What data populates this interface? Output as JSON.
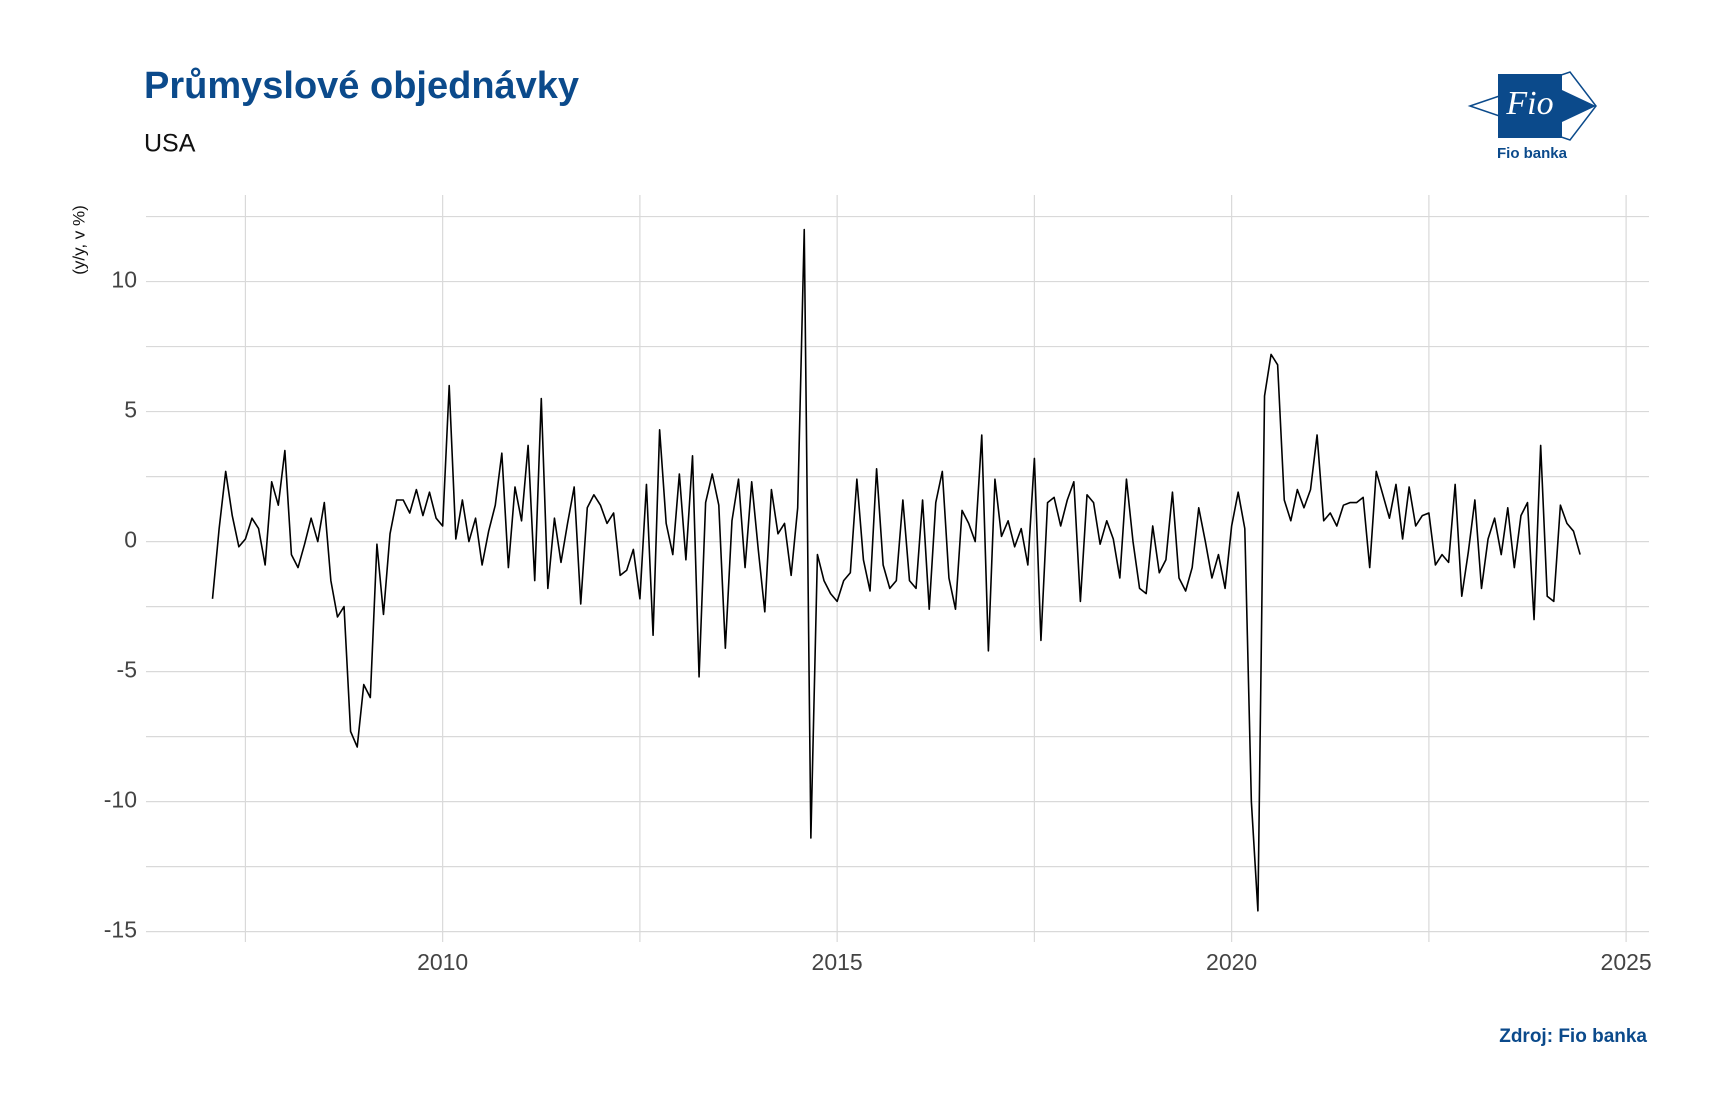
{
  "chart_data": {
    "type": "line",
    "title": "Průmyslové objednávky",
    "subtitle": "USA",
    "y_label": "(y/y, v %)",
    "source": "Zdroj: Fio banka",
    "color": "#000000",
    "grid": true,
    "xlim": [
      2006.24,
      2025.29
    ],
    "xticks": [
      2010,
      2015,
      2020,
      2025
    ],
    "ylim": [
      -15.4,
      13.33
    ],
    "yticks": [
      -15,
      -10,
      -5,
      0,
      5,
      10
    ],
    "x": [
      2007.083,
      2007.167,
      2007.25,
      2007.333,
      2007.417,
      2007.5,
      2007.583,
      2007.667,
      2007.75,
      2007.833,
      2007.917,
      2008.0,
      2008.083,
      2008.167,
      2008.25,
      2008.333,
      2008.417,
      2008.5,
      2008.583,
      2008.667,
      2008.75,
      2008.833,
      2008.917,
      2009.0,
      2009.083,
      2009.167,
      2009.25,
      2009.333,
      2009.417,
      2009.5,
      2009.583,
      2009.667,
      2009.75,
      2009.833,
      2009.917,
      2010.0,
      2010.083,
      2010.167,
      2010.25,
      2010.333,
      2010.417,
      2010.5,
      2010.583,
      2010.667,
      2010.75,
      2010.833,
      2010.917,
      2011.0,
      2011.083,
      2011.167,
      2011.25,
      2011.333,
      2011.417,
      2011.5,
      2011.583,
      2011.667,
      2011.75,
      2011.833,
      2011.917,
      2012.0,
      2012.083,
      2012.167,
      2012.25,
      2012.333,
      2012.417,
      2012.5,
      2012.583,
      2012.667,
      2012.75,
      2012.833,
      2012.917,
      2013.0,
      2013.083,
      2013.167,
      2013.25,
      2013.333,
      2013.417,
      2013.5,
      2013.583,
      2013.667,
      2013.75,
      2013.833,
      2013.917,
      2014.0,
      2014.083,
      2014.167,
      2014.25,
      2014.333,
      2014.417,
      2014.5,
      2014.583,
      2014.667,
      2014.75,
      2014.833,
      2014.917,
      2015.0,
      2015.083,
      2015.167,
      2015.25,
      2015.333,
      2015.417,
      2015.5,
      2015.583,
      2015.667,
      2015.75,
      2015.833,
      2015.917,
      2016.0,
      2016.083,
      2016.167,
      2016.25,
      2016.333,
      2016.417,
      2016.5,
      2016.583,
      2016.667,
      2016.75,
      2016.833,
      2016.917,
      2017.0,
      2017.083,
      2017.167,
      2017.25,
      2017.333,
      2017.417,
      2017.5,
      2017.583,
      2017.667,
      2017.75,
      2017.833,
      2017.917,
      2018.0,
      2018.083,
      2018.167,
      2018.25,
      2018.333,
      2018.417,
      2018.5,
      2018.583,
      2018.667,
      2018.75,
      2018.833,
      2018.917,
      2019.0,
      2019.083,
      2019.167,
      2019.25,
      2019.333,
      2019.417,
      2019.5,
      2019.583,
      2019.667,
      2019.75,
      2019.833,
      2019.917,
      2020.0,
      2020.083,
      2020.167,
      2020.25,
      2020.333,
      2020.417,
      2020.5,
      2020.583,
      2020.667,
      2020.75,
      2020.833,
      2020.917,
      2021.0,
      2021.083,
      2021.167,
      2021.25,
      2021.333,
      2021.417,
      2021.5,
      2021.583,
      2021.667,
      2021.75,
      2021.833,
      2021.917,
      2022.0,
      2022.083,
      2022.167,
      2022.25,
      2022.333,
      2022.417,
      2022.5,
      2022.583,
      2022.667,
      2022.75,
      2022.833,
      2022.917,
      2023.0,
      2023.083,
      2023.167,
      2023.25,
      2023.333,
      2023.417,
      2023.5,
      2023.583,
      2023.667,
      2023.75,
      2023.833,
      2023.917,
      2024.0,
      2024.083,
      2024.167,
      2024.25,
      2024.333,
      2024.417
    ],
    "values": [
      -2.2,
      0.5,
      2.7,
      1.0,
      -0.2,
      0.1,
      0.9,
      0.5,
      -0.9,
      2.3,
      1.4,
      3.5,
      -0.5,
      -1.0,
      -0.1,
      0.9,
      0.0,
      1.5,
      -1.5,
      -2.9,
      -2.5,
      -7.3,
      -7.9,
      -5.5,
      -6.0,
      -0.1,
      -2.8,
      0.3,
      1.6,
      1.6,
      1.1,
      2.0,
      1.0,
      1.9,
      0.9,
      0.6,
      6.0,
      0.1,
      1.6,
      0.0,
      0.9,
      -0.9,
      0.4,
      1.4,
      3.4,
      -1.0,
      2.1,
      0.8,
      3.7,
      -1.5,
      5.5,
      -1.8,
      0.9,
      -0.8,
      0.7,
      2.1,
      -2.4,
      1.3,
      1.8,
      1.4,
      0.7,
      1.1,
      -1.3,
      -1.1,
      -0.3,
      -2.2,
      2.2,
      -3.6,
      4.3,
      0.7,
      -0.5,
      2.6,
      -0.7,
      3.3,
      -5.2,
      1.5,
      2.6,
      1.4,
      -4.1,
      0.8,
      2.4,
      -1.0,
      2.3,
      -0.3,
      -2.7,
      2.0,
      0.3,
      0.7,
      -1.3,
      1.3,
      12.0,
      -11.4,
      -0.5,
      -1.5,
      -2.0,
      -2.3,
      -1.5,
      -1.2,
      2.4,
      -0.7,
      -1.9,
      2.8,
      -0.9,
      -1.8,
      -1.5,
      1.6,
      -1.5,
      -1.8,
      1.6,
      -2.6,
      1.5,
      2.7,
      -1.4,
      -2.6,
      1.2,
      0.7,
      0.0,
      4.1,
      -4.2,
      2.4,
      0.2,
      0.8,
      -0.2,
      0.5,
      -0.9,
      3.2,
      -3.8,
      1.5,
      1.7,
      0.6,
      1.6,
      2.3,
      -2.3,
      1.8,
      1.5,
      -0.1,
      0.8,
      0.1,
      -1.4,
      2.4,
      0.0,
      -1.8,
      -2.0,
      0.6,
      -1.2,
      -0.7,
      1.9,
      -1.4,
      -1.9,
      -1.0,
      1.3,
      0.0,
      -1.4,
      -0.5,
      -1.8,
      0.6,
      1.9,
      0.5,
      -10.0,
      -14.2,
      5.6,
      7.2,
      6.8,
      1.6,
      0.8,
      2.0,
      1.3,
      2.0,
      4.1,
      0.8,
      1.1,
      0.6,
      1.4,
      1.5,
      1.5,
      1.7,
      -1.0,
      2.7,
      1.8,
      0.9,
      2.2,
      0.1,
      2.1,
      0.6,
      1.0,
      1.1,
      -0.9,
      -0.5,
      -0.8,
      2.2,
      -2.1,
      -0.4,
      1.6,
      -1.8,
      0.1,
      0.9,
      -0.5,
      1.3,
      -1.0,
      1.0,
      1.5,
      -3.0,
      3.7,
      -2.1,
      -2.3,
      1.4,
      0.7,
      0.4,
      -0.5
    ]
  },
  "logo": {
    "mark": "Fio",
    "name": "Fio banka"
  }
}
